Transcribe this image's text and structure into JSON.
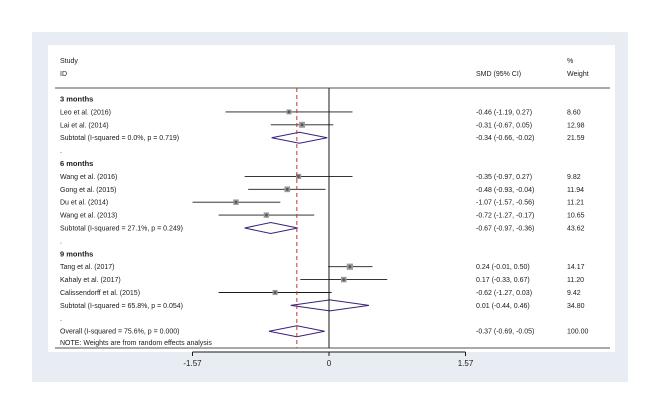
{
  "chart_data": {
    "type": "forest",
    "header": {
      "col1_line1": "Study",
      "col1_line2": "ID",
      "col2": "SMD (95% CI)",
      "col3_line1": "%",
      "col3_line2": "Weight"
    },
    "xlim": [
      -1.57,
      1.57
    ],
    "x_ticks": [
      "-1.57",
      "0",
      "1.57"
    ],
    "overall_line": -0.37,
    "rows": [
      {
        "kind": "group",
        "label": "3 months"
      },
      {
        "kind": "study",
        "label": "Leo et al.  (2016)",
        "est": -0.46,
        "lo": -1.19,
        "hi": 0.27,
        "ci_text": "-0.46 (-1.19, 0.27)",
        "weight": "8.60"
      },
      {
        "kind": "study",
        "label": "Lai et al. (2014)",
        "est": -0.31,
        "lo": -0.67,
        "hi": 0.05,
        "ci_text": "-0.31 (-0.67, 0.05)",
        "weight": "12.98"
      },
      {
        "kind": "subtotal",
        "label": "Subtotal  (I-squared = 0.0%, p = 0.719)",
        "est": -0.34,
        "lo": -0.66,
        "hi": -0.02,
        "ci_text": "-0.34 (-0.66, -0.02)",
        "weight": "21.59"
      },
      {
        "kind": "dot",
        "label": "."
      },
      {
        "kind": "group",
        "label": "6 months"
      },
      {
        "kind": "study",
        "label": "Wang et al. (2016)",
        "est": -0.35,
        "lo": -0.97,
        "hi": 0.27,
        "ci_text": "-0.35 (-0.97, 0.27)",
        "weight": "9.82"
      },
      {
        "kind": "study",
        "label": "Gong et al. (2015)",
        "est": -0.48,
        "lo": -0.93,
        "hi": -0.04,
        "ci_text": "-0.48 (-0.93, -0.04)",
        "weight": "11.94"
      },
      {
        "kind": "study",
        "label": "Du et al.  (2014)",
        "est": -1.07,
        "lo": -1.57,
        "hi": -0.56,
        "ci_text": "-1.07 (-1.57, -0.56)",
        "weight": "11.21"
      },
      {
        "kind": "study",
        "label": "Wang et al.  (2013)",
        "est": -0.72,
        "lo": -1.27,
        "hi": -0.17,
        "ci_text": "-0.72 (-1.27, -0.17)",
        "weight": "10.65"
      },
      {
        "kind": "subtotal",
        "label": "Subtotal  (I-squared = 27.1%, p = 0.249)",
        "est": -0.67,
        "lo": -0.97,
        "hi": -0.36,
        "ci_text": "-0.67 (-0.97, -0.36)",
        "weight": "43.62"
      },
      {
        "kind": "dot",
        "label": "."
      },
      {
        "kind": "group",
        "label": "9 months"
      },
      {
        "kind": "study",
        "label": "Tang et al. (2017)",
        "est": 0.24,
        "lo": -0.01,
        "hi": 0.5,
        "ci_text": "0.24 (-0.01, 0.50)",
        "weight": "14.17"
      },
      {
        "kind": "study",
        "label": "Kahaly et al. (2017)",
        "est": 0.17,
        "lo": -0.33,
        "hi": 0.67,
        "ci_text": "0.17 (-0.33, 0.67)",
        "weight": "11.20"
      },
      {
        "kind": "study",
        "label": "Calissendorff et al. (2015)",
        "est": -0.62,
        "lo": -1.27,
        "hi": 0.03,
        "ci_text": "-0.62 (-1.27, 0.03)",
        "weight": "9.42"
      },
      {
        "kind": "subtotal",
        "label": "Subtotal  (I-squared = 65.8%, p = 0.054)",
        "est": 0.01,
        "lo": -0.44,
        "hi": 0.46,
        "ci_text": "0.01 (-0.44, 0.46)",
        "weight": "34.80"
      },
      {
        "kind": "dot",
        "label": "."
      },
      {
        "kind": "overall",
        "label": "Overall  (I-squared = 75.6%, p = 0.000)",
        "est": -0.37,
        "lo": -0.69,
        "hi": -0.05,
        "ci_text": "-0.37 (-0.69, -0.05)",
        "weight": "100.00"
      }
    ],
    "note": "NOTE: Weights are from random effects analysis",
    "colors": {
      "diamond": "#3b1f7a",
      "overall_line": "#c0392b",
      "marker": "#555555",
      "line": "#1a1a1a",
      "outer_background": "#e8edf3"
    }
  }
}
